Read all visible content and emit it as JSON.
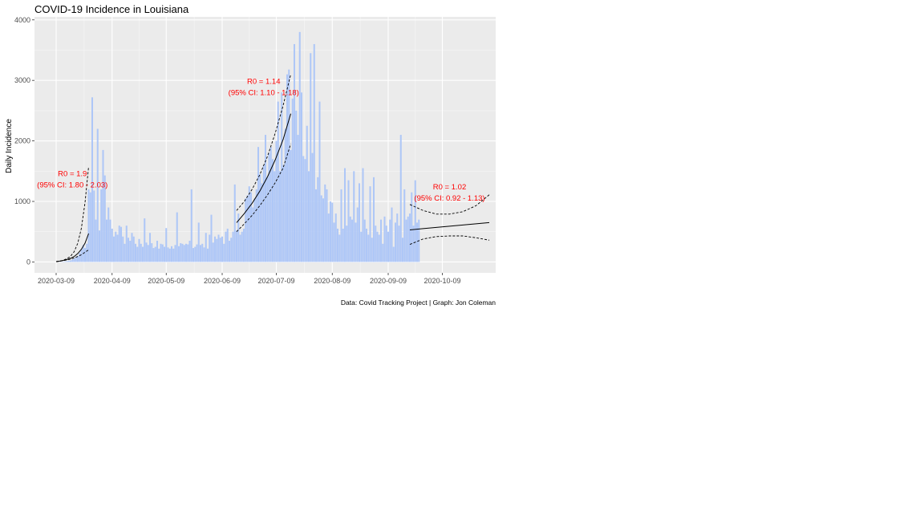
{
  "chart_data": {
    "type": "bar",
    "title": "COVID-19 Incidence in Louisiana",
    "xlabel": "",
    "ylabel": "Daily Incidence",
    "caption": "Data: Covid Tracking Project | Graph: Jon Coleman",
    "x_start": "2020-03-09",
    "x_tick_labels": [
      "2020-03-09",
      "2020-04-09",
      "2020-05-09",
      "2020-06-09",
      "2020-07-09",
      "2020-08-09",
      "2020-09-09",
      "2020-10-09"
    ],
    "y_ticks": [
      0,
      1000,
      2000,
      3000,
      4000
    ],
    "ylim": [
      -180,
      4050
    ],
    "grid": true,
    "colors": {
      "bar": "#aec7f7",
      "panel": "#ebebeb",
      "grid": "#ffffff",
      "annotation": "#ff0000",
      "fit": "#000000"
    },
    "daily_incidence": [
      0,
      1,
      3,
      4,
      6,
      10,
      15,
      20,
      25,
      40,
      60,
      80,
      100,
      150,
      200,
      280,
      230,
      300,
      1200,
      1150,
      2720,
      1180,
      700,
      2200,
      520,
      1200,
      1850,
      1430,
      700,
      900,
      700,
      550,
      420,
      500,
      450,
      600,
      580,
      420,
      300,
      600,
      400,
      350,
      480,
      420,
      300,
      250,
      380,
      300,
      250,
      720,
      320,
      280,
      480,
      310,
      230,
      250,
      350,
      220,
      300,
      290,
      250,
      560,
      240,
      220,
      260,
      220,
      280,
      820,
      260,
      310,
      300,
      280,
      300,
      290,
      350,
      1200,
      230,
      250,
      290,
      650,
      280,
      300,
      240,
      480,
      220,
      450,
      780,
      320,
      420,
      380,
      450,
      400,
      420,
      300,
      500,
      550,
      350,
      400,
      500,
      1280,
      520,
      800,
      450,
      500,
      550,
      1050,
      1100,
      1250,
      1150,
      900,
      1050,
      1200,
      1900,
      1450,
      1300,
      1600,
      2100,
      1400,
      1800,
      1900,
      1700,
      1500,
      2000,
      2650,
      1500,
      2800,
      1600,
      2200,
      3100,
      3180,
      1850,
      2700,
      3600,
      2500,
      2100,
      3800,
      2800,
      1750,
      1700,
      2250,
      1500,
      3450,
      1800,
      3600,
      1200,
      1400,
      2650,
      1100,
      1050,
      1280,
      1200,
      800,
      1000,
      980,
      650,
      800,
      550,
      450,
      1200,
      550,
      1550,
      600,
      1350,
      750,
      700,
      1500,
      650,
      900,
      1300,
      500,
      1550,
      700,
      550,
      450,
      1250,
      400,
      1400,
      600,
      500,
      450,
      700,
      300,
      750,
      600,
      500,
      700,
      900,
      250,
      650,
      800,
      600,
      2100,
      400,
      1200,
      700,
      750,
      800,
      1150,
      600,
      1350,
      650,
      700
    ],
    "fits": [
      {
        "label_lines": [
          "R0 = 1.9",
          "(95% CI: 1.80 - 2.03)"
        ],
        "day_start": 0,
        "day_end": 18,
        "center": [
          5,
          13,
          25,
          40,
          60,
          90,
          140,
          210,
          310,
          470
        ],
        "lower": [
          5,
          12,
          22,
          33,
          47,
          66,
          90,
          120,
          160,
          200
        ],
        "upper": [
          5,
          14,
          30,
          55,
          95,
          170,
          310,
          560,
          980,
          1580
        ]
      },
      {
        "label_lines": [
          "R0 = 1.14",
          "(95% CI: 1.10 - 1.18)"
        ],
        "day_start": 100,
        "day_end": 130,
        "center": [
          650,
          800,
          970,
          1170,
          1410,
          1690,
          2020,
          2450
        ],
        "lower": [
          500,
          630,
          770,
          930,
          1110,
          1310,
          1550,
          1950
        ],
        "upper": [
          850,
          1000,
          1200,
          1440,
          1750,
          2130,
          2580,
          3100
        ]
      },
      {
        "label_lines": [
          "R0 = 1.02",
          "(95% CI: 0.92 - 1.13)"
        ],
        "day_start": 196,
        "day_end": 240,
        "center": [
          530,
          550,
          570,
          590,
          610,
          630,
          650
        ],
        "lower": [
          290,
          380,
          420,
          430,
          430,
          400,
          360
        ],
        "upper": [
          950,
          850,
          790,
          790,
          830,
          930,
          1110
        ]
      }
    ]
  }
}
